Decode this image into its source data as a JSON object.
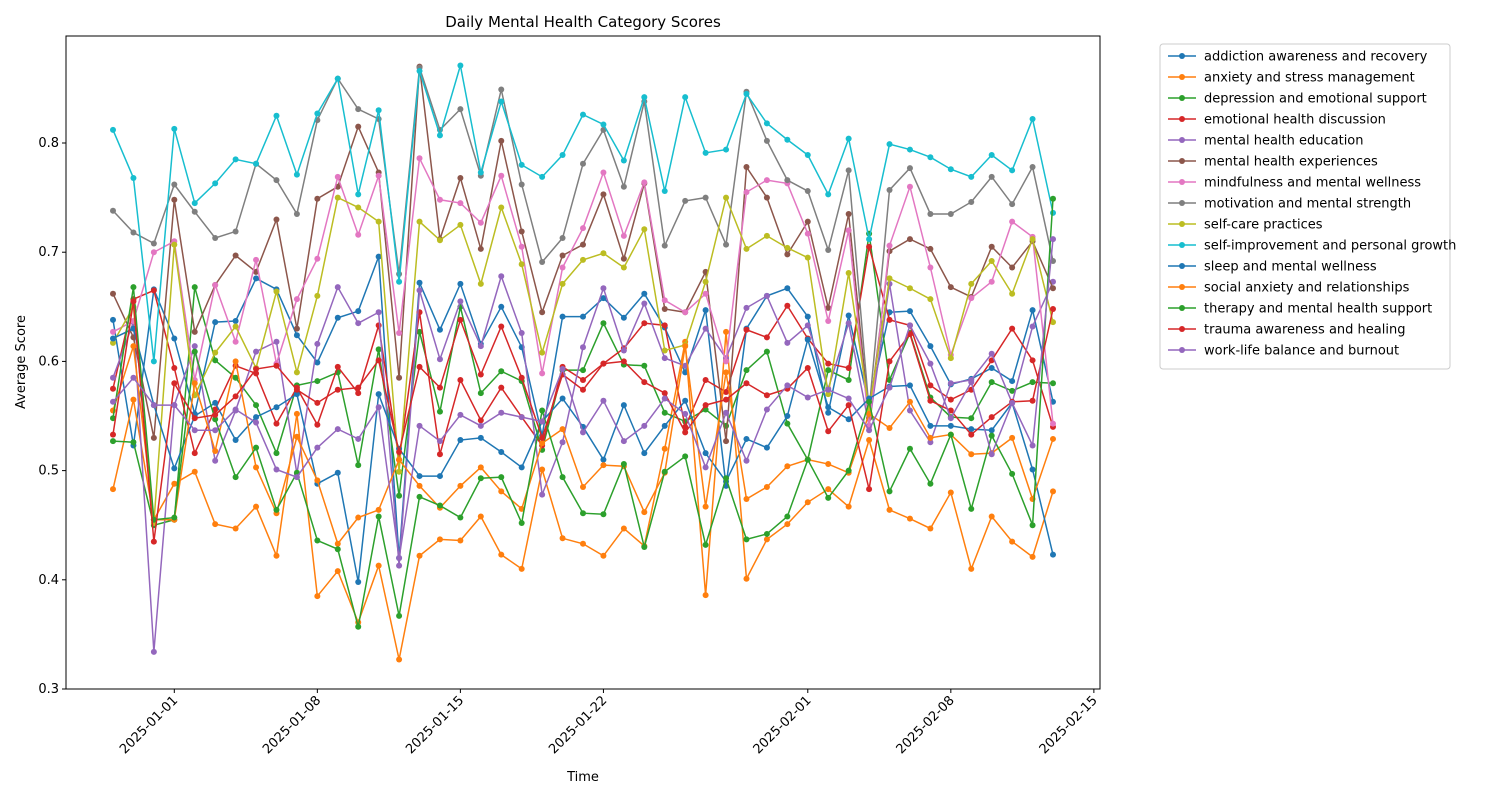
{
  "chart_data": {
    "type": "line",
    "title": "Daily Mental Health Category Scores",
    "xlabel": "Time",
    "ylabel": "Average Score",
    "x": [
      "2024-12-29",
      "2024-12-30",
      "2024-12-31",
      "2025-01-01",
      "2025-01-02",
      "2025-01-03",
      "2025-01-04",
      "2025-01-05",
      "2025-01-06",
      "2025-01-07",
      "2025-01-08",
      "2025-01-09",
      "2025-01-10",
      "2025-01-11",
      "2025-01-12",
      "2025-01-13",
      "2025-01-14",
      "2025-01-15",
      "2025-01-16",
      "2025-01-17",
      "2025-01-18",
      "2025-01-19",
      "2025-01-20",
      "2025-01-21",
      "2025-01-22",
      "2025-01-23",
      "2025-01-24",
      "2025-01-25",
      "2025-01-26",
      "2025-01-27",
      "2025-01-28",
      "2025-01-29",
      "2025-01-30",
      "2025-01-31",
      "2025-02-01",
      "2025-02-02",
      "2025-02-03",
      "2025-02-04",
      "2025-02-05",
      "2025-02-06",
      "2025-02-07",
      "2025-02-08",
      "2025-02-09",
      "2025-02-10",
      "2025-02-11",
      "2025-02-12",
      "2025-02-13"
    ],
    "xlim": [
      "2024-12-26T16:48:00Z",
      "2025-02-15T07:12:00Z"
    ],
    "xticks": [
      "2025-01-01",
      "2025-01-08",
      "2025-01-15",
      "2025-01-22",
      "2025-02-01",
      "2025-02-08",
      "2025-02-15"
    ],
    "ylim": [
      0.3,
      0.898
    ],
    "yticks": [
      0.3,
      0.4,
      0.5,
      0.6,
      0.7,
      0.8
    ],
    "series": [
      {
        "name": "addiction awareness and recovery",
        "color": "#1f77b4",
        "values": [
          0.638,
          0.523,
          0.666,
          0.621,
          0.552,
          0.636,
          0.637,
          0.676,
          0.666,
          0.624,
          0.599,
          0.64,
          0.646,
          0.696,
          0.42,
          0.672,
          0.629,
          0.671,
          0.616,
          0.65,
          0.613,
          0.532,
          0.641,
          0.641,
          0.658,
          0.64,
          0.662,
          0.631,
          0.59,
          0.647,
          0.486,
          0.63,
          0.66,
          0.667,
          0.641,
          0.553,
          0.642,
          0.56,
          0.645,
          0.646,
          0.614,
          0.579,
          0.584,
          0.594,
          0.582,
          0.647,
          0.563
        ]
      },
      {
        "name": "anxiety and stress management",
        "color": "#ff7f0e",
        "values": [
          0.483,
          0.565,
          0.455,
          0.488,
          0.499,
          0.451,
          0.447,
          0.467,
          0.422,
          0.552,
          0.385,
          0.408,
          0.361,
          0.413,
          0.327,
          0.422,
          0.437,
          0.436,
          0.458,
          0.423,
          0.41,
          0.501,
          0.438,
          0.433,
          0.422,
          0.447,
          0.431,
          0.52,
          0.618,
          0.386,
          0.627,
          0.401,
          0.437,
          0.451,
          0.471,
          0.483,
          0.467,
          0.528,
          0.464,
          0.456,
          0.447,
          0.48,
          0.41,
          0.458,
          0.435,
          0.421,
          0.481
        ]
      },
      {
        "name": "depression and emotional support",
        "color": "#2ca02c",
        "values": [
          0.527,
          0.526,
          0.45,
          0.455,
          0.668,
          0.601,
          0.585,
          0.56,
          0.516,
          0.578,
          0.582,
          0.59,
          0.505,
          0.611,
          0.477,
          0.627,
          0.554,
          0.65,
          0.571,
          0.591,
          0.582,
          0.519,
          0.592,
          0.592,
          0.635,
          0.597,
          0.596,
          0.553,
          0.545,
          0.556,
          0.541,
          0.592,
          0.609,
          0.543,
          0.51,
          0.592,
          0.583,
          0.717,
          0.583,
          0.626,
          0.567,
          0.549,
          0.548,
          0.581,
          0.573,
          0.581,
          0.58
        ]
      },
      {
        "name": "emotional health discussion",
        "color": "#d62728",
        "values": [
          0.575,
          0.657,
          0.665,
          0.594,
          0.516,
          0.556,
          0.596,
          0.589,
          0.543,
          0.576,
          0.542,
          0.595,
          0.571,
          0.633,
          0.51,
          0.645,
          0.515,
          0.583,
          0.546,
          0.576,
          0.549,
          0.523,
          0.595,
          0.583,
          0.598,
          0.612,
          0.635,
          0.633,
          0.54,
          0.583,
          0.572,
          0.629,
          0.622,
          0.651,
          0.621,
          0.598,
          0.594,
          0.705,
          0.638,
          0.633,
          0.578,
          0.565,
          0.574,
          0.601,
          0.63,
          0.601,
          0.54
        ]
      },
      {
        "name": "mental health education",
        "color": "#9467bd",
        "values": [
          0.585,
          0.636,
          0.334,
          0.56,
          0.614,
          0.509,
          0.555,
          0.609,
          0.618,
          0.497,
          0.616,
          0.668,
          0.635,
          0.645,
          0.413,
          0.665,
          0.602,
          0.655,
          0.614,
          0.678,
          0.626,
          0.478,
          0.526,
          0.613,
          0.667,
          0.61,
          0.653,
          0.603,
          0.596,
          0.63,
          0.603,
          0.649,
          0.66,
          0.617,
          0.633,
          0.575,
          0.635,
          0.541,
          0.671,
          0.555,
          0.526,
          0.58,
          0.583,
          0.607,
          0.562,
          0.632,
          0.673
        ]
      },
      {
        "name": "mental health experiences",
        "color": "#8c564b",
        "values": [
          0.662,
          0.622,
          0.53,
          0.748,
          0.627,
          0.67,
          0.697,
          0.682,
          0.73,
          0.63,
          0.749,
          0.76,
          0.815,
          0.773,
          0.585,
          0.87,
          0.712,
          0.768,
          0.703,
          0.802,
          0.719,
          0.645,
          0.697,
          0.707,
          0.753,
          0.694,
          0.763,
          0.648,
          0.645,
          0.682,
          0.527,
          0.778,
          0.75,
          0.698,
          0.728,
          0.649,
          0.735,
          0.548,
          0.701,
          0.712,
          0.703,
          0.668,
          0.659,
          0.705,
          0.686,
          0.71,
          0.667
        ]
      },
      {
        "name": "mindfulness and mental wellness",
        "color": "#e377c2",
        "values": [
          0.627,
          0.637,
          0.7,
          0.71,
          0.583,
          0.67,
          0.618,
          0.693,
          0.598,
          0.657,
          0.694,
          0.769,
          0.716,
          0.77,
          0.626,
          0.786,
          0.748,
          0.745,
          0.727,
          0.77,
          0.705,
          0.589,
          0.686,
          0.722,
          0.773,
          0.715,
          0.764,
          0.656,
          0.645,
          0.662,
          0.6,
          0.755,
          0.766,
          0.763,
          0.717,
          0.637,
          0.72,
          0.54,
          0.706,
          0.76,
          0.686,
          0.606,
          0.658,
          0.673,
          0.728,
          0.714,
          0.543
        ]
      },
      {
        "name": "motivation and mental strength",
        "color": "#7f7f7f",
        "values": [
          0.738,
          0.718,
          0.708,
          0.762,
          0.737,
          0.713,
          0.719,
          0.781,
          0.766,
          0.735,
          0.821,
          0.859,
          0.831,
          0.822,
          0.68,
          0.869,
          0.812,
          0.831,
          0.77,
          0.849,
          0.762,
          0.691,
          0.713,
          0.781,
          0.812,
          0.76,
          0.838,
          0.706,
          0.747,
          0.75,
          0.707,
          0.847,
          0.802,
          0.766,
          0.756,
          0.702,
          0.775,
          0.555,
          0.757,
          0.777,
          0.735,
          0.735,
          0.746,
          0.769,
          0.744,
          0.778,
          0.692
        ]
      },
      {
        "name": "self-care practices",
        "color": "#bcbd22",
        "values": [
          0.617,
          0.65,
          0.452,
          0.707,
          0.569,
          0.608,
          0.632,
          0.594,
          0.664,
          0.59,
          0.66,
          0.75,
          0.741,
          0.728,
          0.499,
          0.728,
          0.711,
          0.725,
          0.671,
          0.741,
          0.689,
          0.608,
          0.671,
          0.693,
          0.699,
          0.686,
          0.721,
          0.61,
          0.615,
          0.673,
          0.75,
          0.703,
          0.715,
          0.704,
          0.695,
          0.57,
          0.681,
          0.556,
          0.676,
          0.667,
          0.657,
          0.603,
          0.671,
          0.692,
          0.662,
          0.712,
          0.636
        ]
      },
      {
        "name": "self-improvement and personal growth",
        "color": "#17becf",
        "values": [
          0.812,
          0.768,
          0.6,
          0.813,
          0.745,
          0.763,
          0.785,
          0.781,
          0.825,
          0.771,
          0.827,
          0.859,
          0.753,
          0.83,
          0.673,
          0.866,
          0.807,
          0.871,
          0.773,
          0.838,
          0.78,
          0.769,
          0.789,
          0.826,
          0.817,
          0.784,
          0.842,
          0.756,
          0.842,
          0.791,
          0.794,
          0.845,
          0.818,
          0.803,
          0.789,
          0.753,
          0.804,
          0.712,
          0.799,
          0.794,
          0.787,
          0.776,
          0.769,
          0.789,
          0.775,
          0.822,
          0.736
        ]
      },
      {
        "name": "sleep and mental wellness",
        "color": "#1f77b4",
        "values": [
          0.621,
          0.63,
          0.56,
          0.502,
          0.55,
          0.562,
          0.528,
          0.549,
          0.558,
          0.57,
          0.488,
          0.498,
          0.398,
          0.57,
          0.52,
          0.495,
          0.495,
          0.528,
          0.53,
          0.517,
          0.503,
          0.545,
          0.566,
          0.54,
          0.51,
          0.56,
          0.516,
          0.541,
          0.564,
          0.516,
          0.49,
          0.529,
          0.521,
          0.55,
          0.62,
          0.558,
          0.547,
          0.566,
          0.577,
          0.578,
          0.541,
          0.541,
          0.538,
          0.537,
          0.562,
          0.501,
          0.423
        ]
      },
      {
        "name": "social anxiety and relationships",
        "color": "#ff7f0e",
        "values": [
          0.555,
          0.614,
          0.455,
          0.455,
          0.58,
          0.518,
          0.6,
          0.503,
          0.461,
          0.531,
          0.491,
          0.433,
          0.457,
          0.464,
          0.51,
          0.486,
          0.466,
          0.486,
          0.503,
          0.481,
          0.465,
          0.525,
          0.538,
          0.485,
          0.505,
          0.504,
          0.462,
          0.498,
          0.614,
          0.467,
          0.59,
          0.474,
          0.485,
          0.504,
          0.51,
          0.506,
          0.498,
          0.552,
          0.539,
          0.563,
          0.53,
          0.533,
          0.515,
          0.516,
          0.53,
          0.474,
          0.529
        ]
      },
      {
        "name": "therapy and mental health support",
        "color": "#2ca02c",
        "values": [
          0.548,
          0.668,
          0.455,
          0.457,
          0.609,
          0.547,
          0.494,
          0.521,
          0.464,
          0.498,
          0.436,
          0.428,
          0.357,
          0.458,
          0.367,
          0.476,
          0.468,
          0.457,
          0.493,
          0.494,
          0.452,
          0.555,
          0.494,
          0.461,
          0.46,
          0.506,
          0.43,
          0.499,
          0.513,
          0.432,
          0.493,
          0.437,
          0.442,
          0.458,
          0.51,
          0.475,
          0.5,
          0.563,
          0.481,
          0.52,
          0.488,
          0.533,
          0.465,
          0.532,
          0.497,
          0.45,
          0.749
        ]
      },
      {
        "name": "trauma awareness and healing",
        "color": "#d62728",
        "values": [
          0.533,
          0.655,
          0.435,
          0.58,
          0.548,
          0.551,
          0.568,
          0.593,
          0.596,
          0.574,
          0.562,
          0.574,
          0.576,
          0.601,
          0.517,
          0.595,
          0.576,
          0.638,
          0.588,
          0.632,
          0.585,
          0.53,
          0.588,
          0.574,
          0.598,
          0.6,
          0.581,
          0.571,
          0.535,
          0.56,
          0.565,
          0.58,
          0.569,
          0.575,
          0.594,
          0.536,
          0.56,
          0.483,
          0.6,
          0.625,
          0.564,
          0.555,
          0.533,
          0.549,
          0.563,
          0.564,
          0.648
        ]
      },
      {
        "name": "work-life balance and burnout",
        "color": "#9467bd",
        "values": [
          0.563,
          0.585,
          0.56,
          0.56,
          0.537,
          0.537,
          0.556,
          0.544,
          0.501,
          0.494,
          0.521,
          0.538,
          0.529,
          0.558,
          0.42,
          0.541,
          0.527,
          0.551,
          0.541,
          0.553,
          0.549,
          0.545,
          0.593,
          0.535,
          0.564,
          0.527,
          0.541,
          0.566,
          0.552,
          0.503,
          0.553,
          0.509,
          0.556,
          0.578,
          0.567,
          0.574,
          0.566,
          0.537,
          0.576,
          0.633,
          0.598,
          0.548,
          0.581,
          0.515,
          0.562,
          0.523,
          0.712
        ]
      }
    ]
  }
}
